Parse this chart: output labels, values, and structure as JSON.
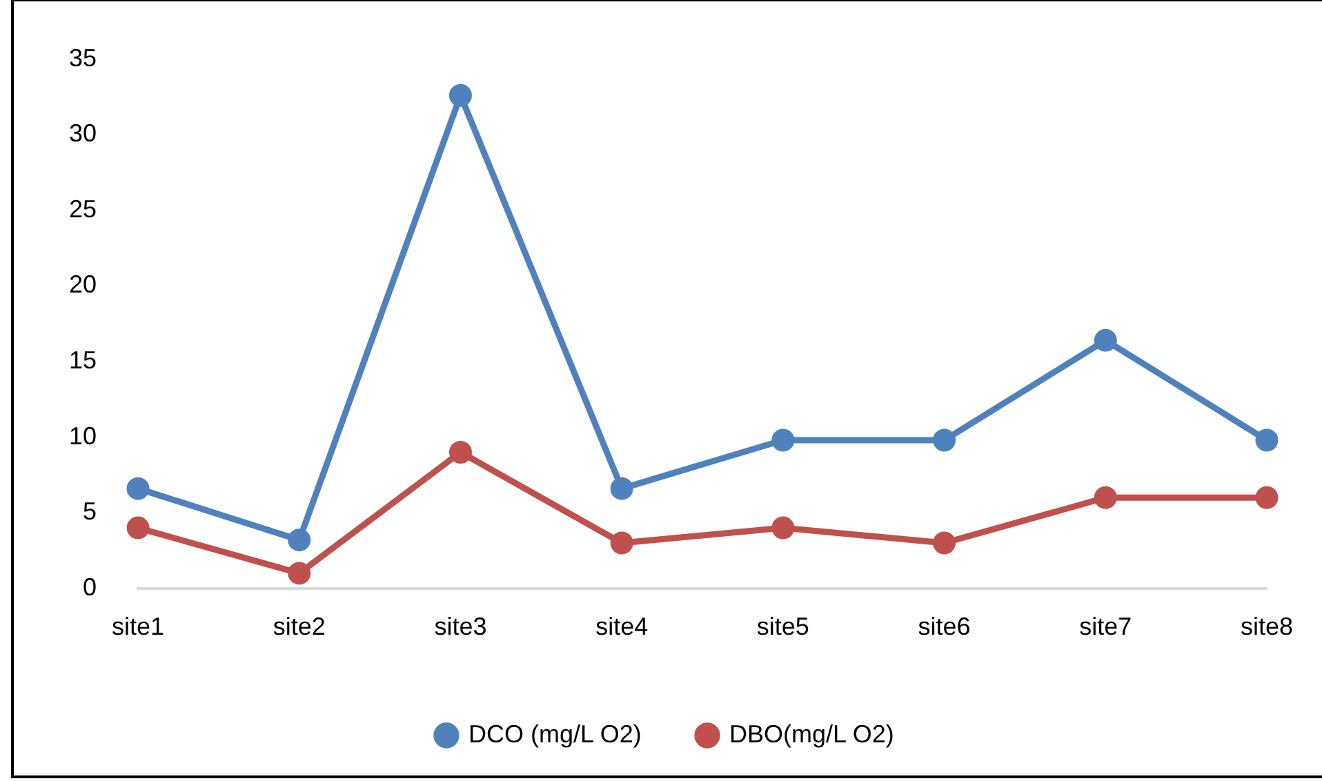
{
  "chart_data": {
    "type": "line",
    "categories": [
      "site1",
      "site2",
      "site3",
      "site4",
      "site5",
      "site6",
      "site7",
      "site8"
    ],
    "series": [
      {
        "name": "DCO (mg/L O2)",
        "color": "#4f81bd",
        "values": [
          6.6,
          3.2,
          32.6,
          6.6,
          9.8,
          9.8,
          16.4,
          9.8
        ]
      },
      {
        "name": "DBO(mg/L O2)",
        "color": "#c0504d",
        "values": [
          4,
          1,
          9,
          3,
          4,
          3,
          6,
          6
        ]
      }
    ],
    "ylim": [
      0,
      35
    ],
    "yticks": [
      0,
      5,
      10,
      15,
      20,
      25,
      30,
      35
    ],
    "grid": false,
    "legend": "bottom",
    "marker": "circle",
    "line_style": "solid"
  }
}
